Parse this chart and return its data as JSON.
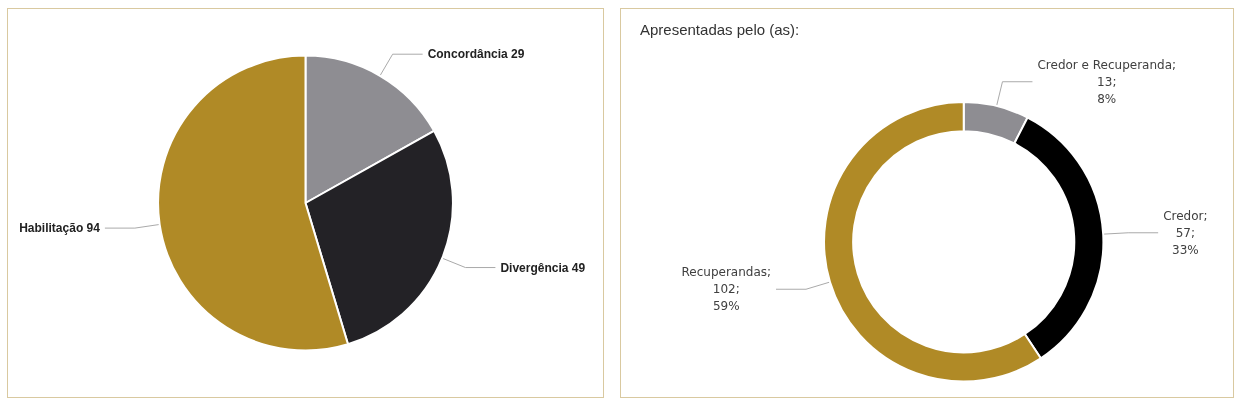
{
  "chart_data": [
    {
      "type": "pie",
      "categories": [
        "Concordância",
        "Divergência",
        "Habilitação"
      ],
      "values": [
        29,
        49,
        94
      ],
      "colors": [
        "#8e8d92",
        "#232226",
        "#b08a26"
      ],
      "data_labels": true,
      "legend": false
    },
    {
      "type": "donut",
      "title": "Apresentadas pelo (as):",
      "categories": [
        "Credor e Recuperanda",
        "Credor",
        "Recuperandas"
      ],
      "values": [
        13,
        57,
        102
      ],
      "colors": [
        "#8e8d92",
        "#000000",
        "#b08a26"
      ],
      "value_labels": [
        ";\n13;\n8%",
        ";\n57;\n33%",
        ";\n102;\n59%"
      ],
      "legend": false
    }
  ]
}
